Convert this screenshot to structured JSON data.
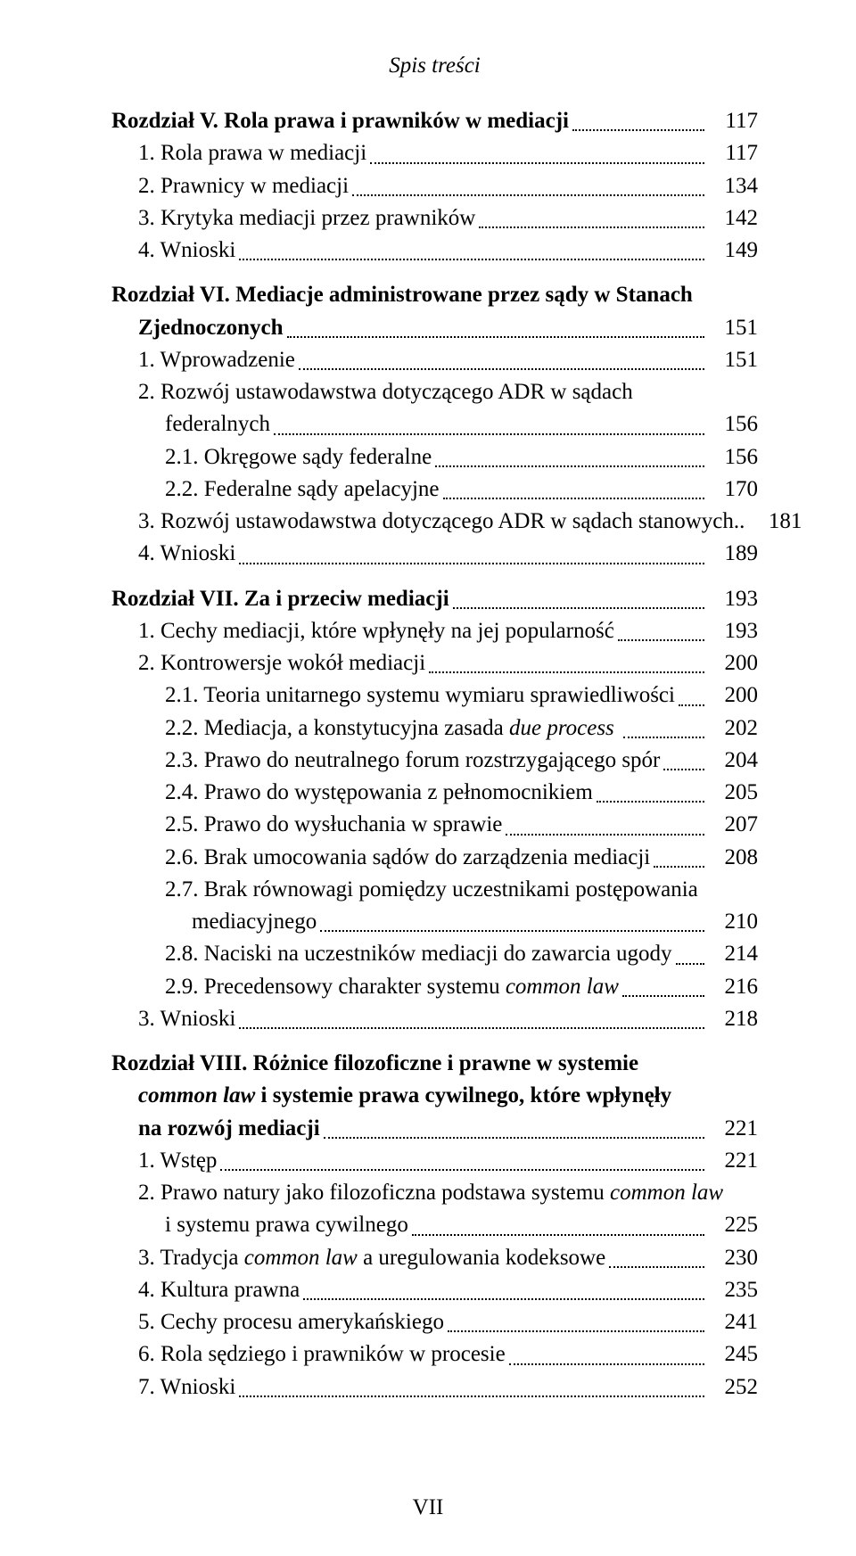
{
  "running_head": "Spis treści",
  "page_number": "VII",
  "colors": {
    "text": "#000000",
    "background": "#ffffff",
    "leader": "#000000"
  },
  "typography": {
    "font_family": "Times New Roman",
    "base_fontsize_pt": 12,
    "running_head_italic": true,
    "chapter_bold": true
  },
  "entries": [
    {
      "kind": "chapter",
      "indent": 0,
      "spans": [
        {
          "t": "Rozdział V. Rola prawa i prawników w mediacji",
          "bold": true
        }
      ],
      "page": "117",
      "gap_before": false
    },
    {
      "kind": "item",
      "indent": 1,
      "spans": [
        {
          "t": "1. Rola prawa w mediacji"
        }
      ],
      "page": "117"
    },
    {
      "kind": "item",
      "indent": 1,
      "spans": [
        {
          "t": "2. Prawnicy w mediacji"
        }
      ],
      "page": "134"
    },
    {
      "kind": "item",
      "indent": 1,
      "spans": [
        {
          "t": "3. Krytyka mediacji przez prawników"
        }
      ],
      "page": "142"
    },
    {
      "kind": "item",
      "indent": 1,
      "spans": [
        {
          "t": "4. Wnioski"
        }
      ],
      "page": "149"
    },
    {
      "kind": "chapter-2line",
      "indent": 0,
      "gap_before": true,
      "line1_spans": [
        {
          "t": "Rozdział VI. Mediacje administrowane przez sądy w Stanach",
          "bold": true
        }
      ],
      "line2_indent": 1,
      "line2_spans": [
        {
          "t": "Zjednoczonych",
          "bold": true
        }
      ],
      "page": "151"
    },
    {
      "kind": "item",
      "indent": 1,
      "spans": [
        {
          "t": "1. Wprowadzenie"
        }
      ],
      "page": "151"
    },
    {
      "kind": "item-2line",
      "indent": 1,
      "line1_spans": [
        {
          "t": "2. Rozwój ustawodawstwa dotyczącego ADR w sądach"
        }
      ],
      "line2_indent": 2,
      "line2_spans": [
        {
          "t": "federalnych"
        }
      ],
      "page": "156"
    },
    {
      "kind": "item",
      "indent": 2,
      "spans": [
        {
          "t": "2.1. Okręgowe sądy federalne"
        }
      ],
      "page": "156"
    },
    {
      "kind": "item",
      "indent": 2,
      "spans": [
        {
          "t": "2.2. Federalne sądy apelacyjne"
        }
      ],
      "page": "170"
    },
    {
      "kind": "item",
      "indent": 1,
      "spans": [
        {
          "t": "3. Rozwój ustawodawstwa dotyczącego ADR w sądach stanowych.."
        }
      ],
      "page": "181",
      "no_leader_extra": false
    },
    {
      "kind": "item",
      "indent": 1,
      "spans": [
        {
          "t": "4. Wnioski"
        }
      ],
      "page": "189"
    },
    {
      "kind": "chapter",
      "indent": 0,
      "gap_before": true,
      "spans": [
        {
          "t": "Rozdział VII. Za i przeciw mediacji",
          "bold": true
        }
      ],
      "page": "193"
    },
    {
      "kind": "item",
      "indent": 1,
      "spans": [
        {
          "t": "1. Cechy mediacji, które wpłynęły na jej popularność"
        }
      ],
      "page": "193"
    },
    {
      "kind": "item",
      "indent": 1,
      "spans": [
        {
          "t": "2. Kontrowersje wokół mediacji"
        }
      ],
      "page": "200"
    },
    {
      "kind": "item",
      "indent": 2,
      "spans": [
        {
          "t": "2.1. Teoria unitarnego systemu wymiaru sprawiedliwości"
        }
      ],
      "page": "200"
    },
    {
      "kind": "item",
      "indent": 2,
      "spans": [
        {
          "t": "2.2. Mediacja, a konstytucyjna zasada "
        },
        {
          "t": "due process",
          "ital": true
        },
        {
          "t": " "
        }
      ],
      "page": "202"
    },
    {
      "kind": "item",
      "indent": 2,
      "spans": [
        {
          "t": "2.3. Prawo do neutralnego forum rozstrzygającego spór"
        }
      ],
      "page": "204"
    },
    {
      "kind": "item",
      "indent": 2,
      "spans": [
        {
          "t": "2.4. Prawo do występowania z pełnomocnikiem"
        }
      ],
      "page": "205"
    },
    {
      "kind": "item",
      "indent": 2,
      "spans": [
        {
          "t": "2.5. Prawo do wysłuchania w sprawie"
        }
      ],
      "page": "207"
    },
    {
      "kind": "item",
      "indent": 2,
      "spans": [
        {
          "t": "2.6. Brak umocowania sądów do zarządzenia mediacji"
        }
      ],
      "page": "208"
    },
    {
      "kind": "item-2line",
      "indent": 2,
      "line1_spans": [
        {
          "t": "2.7. Brak równowagi pomiędzy uczestnikami postępowania"
        }
      ],
      "line2_indent": 3,
      "line2_spans": [
        {
          "t": "mediacyjnego"
        }
      ],
      "page": "210"
    },
    {
      "kind": "item",
      "indent": 2,
      "spans": [
        {
          "t": "2.8. Naciski na uczestników mediacji do zawarcia ugody"
        }
      ],
      "page": "214"
    },
    {
      "kind": "item",
      "indent": 2,
      "spans": [
        {
          "t": "2.9. Precedensowy charakter systemu "
        },
        {
          "t": "common law",
          "ital": true
        }
      ],
      "page": "216"
    },
    {
      "kind": "item",
      "indent": 1,
      "spans": [
        {
          "t": "3. Wnioski"
        }
      ],
      "page": "218"
    },
    {
      "kind": "chapter-3line",
      "indent": 0,
      "gap_before": true,
      "line1_spans": [
        {
          "t": "Rozdział VIII. Różnice filozoficzne i prawne w systemie",
          "bold": true
        }
      ],
      "line2_indent": 1,
      "line2_spans": [
        {
          "t": "common law",
          "bold": true,
          "ital": true
        },
        {
          "t": " i systemie prawa cywilnego, które wpłynęły",
          "bold": true
        }
      ],
      "line3_indent": 1,
      "line3_spans": [
        {
          "t": "na rozwój mediacji",
          "bold": true
        }
      ],
      "page": "221"
    },
    {
      "kind": "item",
      "indent": 1,
      "spans": [
        {
          "t": "1. Wstęp"
        }
      ],
      "page": "221"
    },
    {
      "kind": "item-2line",
      "indent": 1,
      "line1_spans": [
        {
          "t": "2. Prawo natury jako filozoficzna podstawa systemu "
        },
        {
          "t": "common law",
          "ital": true
        }
      ],
      "line2_indent": 2,
      "line2_spans": [
        {
          "t": "i systemu prawa cywilnego"
        }
      ],
      "page": "225"
    },
    {
      "kind": "item",
      "indent": 1,
      "spans": [
        {
          "t": "3. Tradycja "
        },
        {
          "t": "common law",
          "ital": true
        },
        {
          "t": " a uregulowania kodeksowe"
        }
      ],
      "page": "230"
    },
    {
      "kind": "item",
      "indent": 1,
      "spans": [
        {
          "t": "4. Kultura prawna"
        }
      ],
      "page": "235"
    },
    {
      "kind": "item",
      "indent": 1,
      "spans": [
        {
          "t": "5. Cechy procesu amerykańskiego"
        }
      ],
      "page": "241"
    },
    {
      "kind": "item",
      "indent": 1,
      "spans": [
        {
          "t": "6. Rola sędziego i prawników w procesie"
        }
      ],
      "page": "245"
    },
    {
      "kind": "item",
      "indent": 1,
      "spans": [
        {
          "t": "7. Wnioski"
        }
      ],
      "page": "252"
    }
  ]
}
